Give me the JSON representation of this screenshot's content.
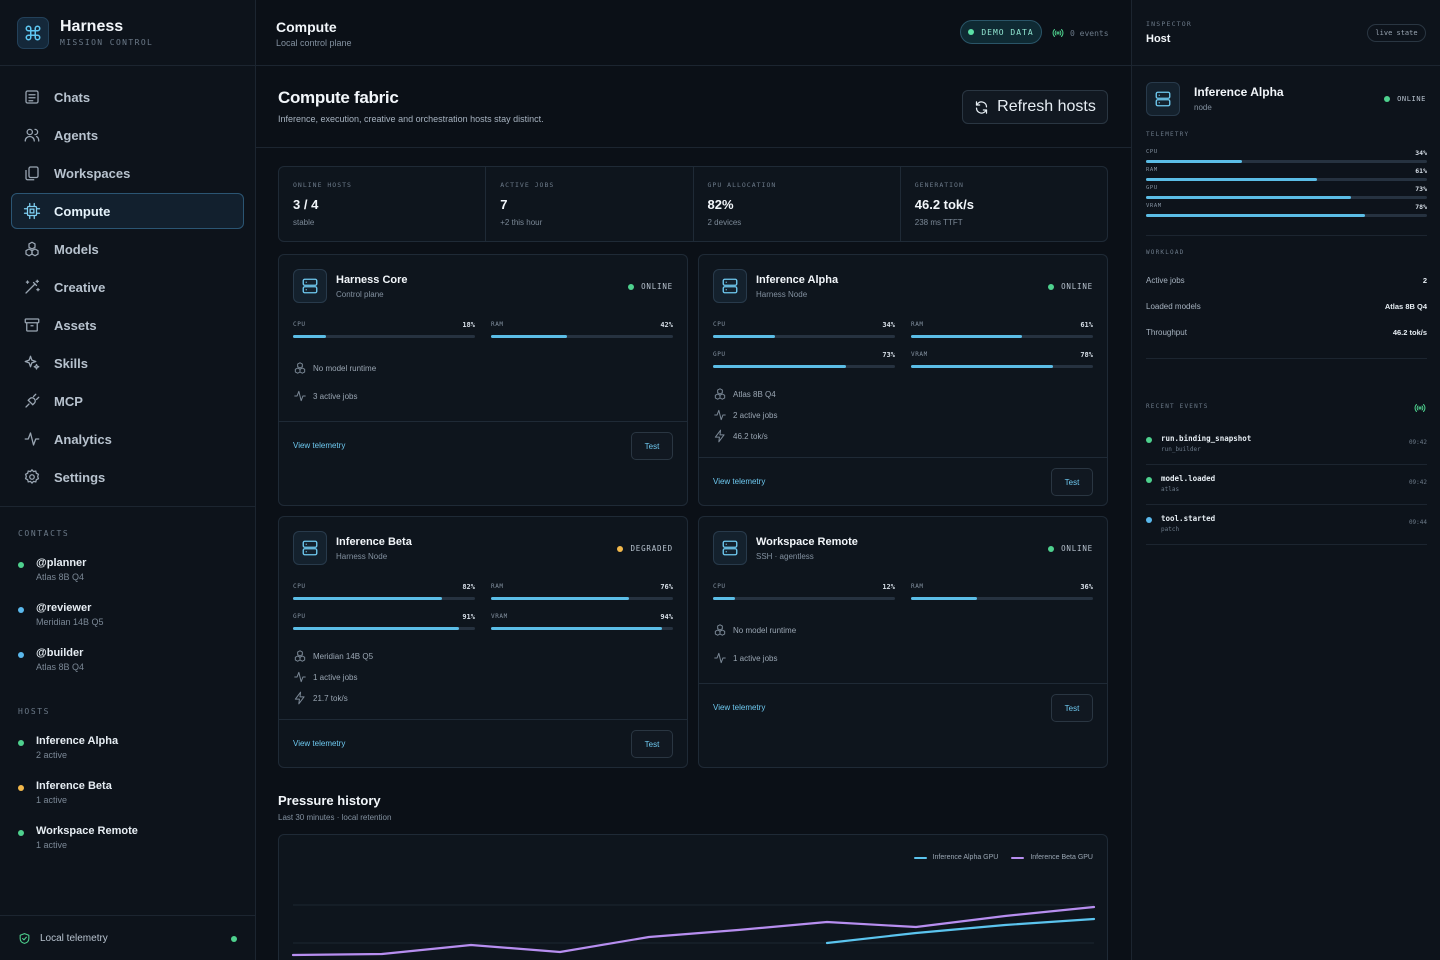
{
  "brand": {
    "title": "Harness",
    "subtitle": "MISSION CONTROL"
  },
  "nav": [
    {
      "label": "Chats",
      "icon": "chat-icon"
    },
    {
      "label": "Agents",
      "icon": "users-icon"
    },
    {
      "label": "Workspaces",
      "icon": "copy-icon"
    },
    {
      "label": "Compute",
      "icon": "cpu-icon",
      "active": true
    },
    {
      "label": "Models",
      "icon": "boxes-icon"
    },
    {
      "label": "Creative",
      "icon": "wand-icon"
    },
    {
      "label": "Assets",
      "icon": "archive-icon"
    },
    {
      "label": "Skills",
      "icon": "sparkles-icon"
    },
    {
      "label": "MCP",
      "icon": "plug-icon"
    },
    {
      "label": "Analytics",
      "icon": "activity-icon"
    },
    {
      "label": "Settings",
      "icon": "gear-icon"
    }
  ],
  "contacts": {
    "label": "CONTACTS",
    "items": [
      {
        "name": "@planner",
        "model": "Atlas 8B Q4",
        "color": "#4ed18e"
      },
      {
        "name": "@reviewer",
        "model": "Meridian 14B Q5",
        "color": "#5ab8ec"
      },
      {
        "name": "@builder",
        "model": "Atlas 8B Q4",
        "color": "#5ab8ec"
      }
    ]
  },
  "hosts_side": {
    "label": "HOSTS",
    "items": [
      {
        "name": "Inference Alpha",
        "sub": "2 active",
        "color": "#4ed18e"
      },
      {
        "name": "Inference Beta",
        "sub": "1 active",
        "color": "#f2b84b"
      },
      {
        "name": "Workspace Remote",
        "sub": "1 active",
        "color": "#4ed18e"
      }
    ]
  },
  "footer": {
    "label": "Local telemetry"
  },
  "header": {
    "title": "Compute",
    "subtitle": "Local control plane",
    "demo": "DEMO DATA",
    "events": "0 events"
  },
  "page": {
    "title": "Compute fabric",
    "subtitle": "Inference, execution, creative and orchestration hosts stay distinct.",
    "refresh": "Refresh hosts"
  },
  "stats": [
    {
      "label": "ONLINE HOSTS",
      "value": "3 / 4",
      "sub": "stable"
    },
    {
      "label": "ACTIVE JOBS",
      "value": "7",
      "sub": "+2 this hour"
    },
    {
      "label": "GPU ALLOCATION",
      "value": "82%",
      "sub": "2 devices"
    },
    {
      "label": "GENERATION",
      "value": "46.2 tok/s",
      "sub": "238 ms TTFT"
    }
  ],
  "hosts": [
    {
      "name": "Harness Core",
      "role": "Control plane",
      "status": "ONLINE",
      "status_color": "#4ed18e",
      "meters": [
        {
          "label": "CPU",
          "value": 18,
          "text": "18%"
        },
        {
          "label": "RAM",
          "value": 42,
          "text": "42%"
        }
      ],
      "lines": [
        {
          "icon": "boxes-icon",
          "text": "No model runtime"
        },
        {
          "icon": "activity-icon",
          "text": "3 active jobs"
        }
      ],
      "link": "View telemetry",
      "test": "Test"
    },
    {
      "name": "Inference Alpha",
      "role": "Harness Node",
      "status": "ONLINE",
      "status_color": "#4ed18e",
      "meters": [
        {
          "label": "CPU",
          "value": 34,
          "text": "34%"
        },
        {
          "label": "RAM",
          "value": 61,
          "text": "61%"
        },
        {
          "label": "GPU",
          "value": 73,
          "text": "73%"
        },
        {
          "label": "VRAM",
          "value": 78,
          "text": "78%"
        }
      ],
      "lines": [
        {
          "icon": "boxes-icon",
          "text": "Atlas 8B Q4"
        },
        {
          "icon": "activity-icon",
          "text": "2 active jobs"
        },
        {
          "icon": "bolt-icon",
          "text": "46.2 tok/s"
        }
      ],
      "link": "View telemetry",
      "test": "Test"
    },
    {
      "name": "Inference Beta",
      "role": "Harness Node",
      "status": "DEGRADED",
      "status_color": "#f2b84b",
      "meters": [
        {
          "label": "CPU",
          "value": 82,
          "text": "82%"
        },
        {
          "label": "RAM",
          "value": 76,
          "text": "76%"
        },
        {
          "label": "GPU",
          "value": 91,
          "text": "91%"
        },
        {
          "label": "VRAM",
          "value": 94,
          "text": "94%"
        }
      ],
      "lines": [
        {
          "icon": "boxes-icon",
          "text": "Meridian 14B Q5"
        },
        {
          "icon": "activity-icon",
          "text": "1 active jobs"
        },
        {
          "icon": "bolt-icon",
          "text": "21.7 tok/s"
        }
      ],
      "link": "View telemetry",
      "test": "Test"
    },
    {
      "name": "Workspace Remote",
      "role": "SSH · agentless",
      "status": "ONLINE",
      "status_color": "#4ed18e",
      "meters": [
        {
          "label": "CPU",
          "value": 12,
          "text": "12%"
        },
        {
          "label": "RAM",
          "value": 36,
          "text": "36%"
        }
      ],
      "lines": [
        {
          "icon": "boxes-icon",
          "text": "No model runtime"
        },
        {
          "icon": "activity-icon",
          "text": "1 active jobs"
        }
      ],
      "link": "View telemetry",
      "test": "Test"
    }
  ],
  "pressure": {
    "title": "Pressure history",
    "subtitle": "Last 30 minutes · local retention"
  },
  "chart_data": {
    "type": "line",
    "title": "Pressure history",
    "x": [
      0,
      1,
      2,
      3,
      4,
      5,
      6,
      7,
      8,
      9
    ],
    "series": [
      {
        "name": "Inference Alpha GPU",
        "color": "#5bc4ee",
        "values": [
          null,
          null,
          null,
          null,
          null,
          null,
          52,
          62,
          70,
          76
        ]
      },
      {
        "name": "Inference Beta GPU",
        "color": "#b78ef0",
        "values": [
          40,
          41,
          50,
          43,
          58,
          65,
          73,
          68,
          79,
          88
        ]
      }
    ],
    "ylim": [
      0,
      100
    ],
    "grid": true,
    "legend": "top-right"
  },
  "inspector": {
    "label": "INSPECTOR",
    "title": "Host",
    "live": "live state",
    "host": {
      "name": "Inference Alpha",
      "role": "node",
      "status": "ONLINE"
    },
    "telemetry_label": "TELEMETRY",
    "telemetry": [
      {
        "label": "CPU",
        "value": 34,
        "text": "34%"
      },
      {
        "label": "RAM",
        "value": 61,
        "text": "61%"
      },
      {
        "label": "GPU",
        "value": 73,
        "text": "73%"
      },
      {
        "label": "VRAM",
        "value": 78,
        "text": "78%"
      }
    ],
    "workload_label": "WORKLOAD",
    "workload": [
      {
        "k": "Active jobs",
        "v": "2"
      },
      {
        "k": "Loaded models",
        "v": "Atlas 8B Q4"
      },
      {
        "k": "Throughput",
        "v": "46.2 tok/s"
      }
    ],
    "events_label": "RECENT EVENTS",
    "events": [
      {
        "name": "run.binding_snapshot",
        "sub": "run_builder",
        "time": "09:42",
        "color": "#4ed18e"
      },
      {
        "name": "model.loaded",
        "sub": "atlas",
        "time": "09:42",
        "color": "#4ed18e"
      },
      {
        "name": "tool.started",
        "sub": "patch",
        "time": "09:44",
        "color": "#5ab8ec"
      }
    ]
  }
}
